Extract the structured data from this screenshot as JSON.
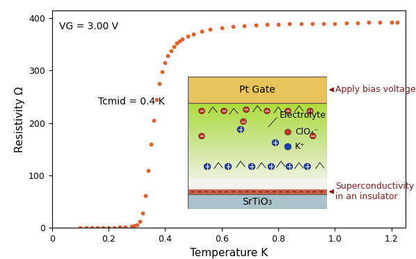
{
  "chart_data": {
    "type": "scatter",
    "x_label": "Temperature K",
    "y_label": "Resistivity Ω",
    "annotations": [
      "VG = 3.00 V",
      "Tcmid = 0.4 K"
    ],
    "x": [
      0.1,
      0.12,
      0.14,
      0.16,
      0.18,
      0.2,
      0.22,
      0.24,
      0.26,
      0.28,
      0.29,
      0.3,
      0.31,
      0.32,
      0.33,
      0.34,
      0.35,
      0.36,
      0.37,
      0.38,
      0.39,
      0.4,
      0.41,
      0.42,
      0.43,
      0.44,
      0.45,
      0.46,
      0.48,
      0.5,
      0.53,
      0.56,
      0.6,
      0.64,
      0.68,
      0.72,
      0.76,
      0.8,
      0.84,
      0.88,
      0.92,
      0.96,
      1.0,
      1.04,
      1.08,
      1.12,
      1.16,
      1.2,
      1.22
    ],
    "values": [
      1,
      1,
      1,
      1,
      1,
      1,
      1,
      2,
      2,
      3,
      4,
      6,
      12,
      28,
      62,
      110,
      160,
      205,
      245,
      275,
      298,
      315,
      328,
      338,
      346,
      352,
      357,
      361,
      366,
      370,
      375,
      379,
      382,
      384,
      386,
      387,
      388,
      388,
      389,
      389,
      390,
      390,
      390,
      391,
      391,
      392,
      392,
      392,
      392
    ],
    "color": "#e2602a",
    "marker": "o",
    "xlim": [
      0,
      1.25
    ],
    "ylim": [
      0,
      415
    ],
    "xticks": [
      0,
      0.2,
      0.4,
      0.6,
      0.8,
      1.0,
      1.2
    ],
    "yticks": [
      0,
      100,
      200,
      300,
      400
    ],
    "grid": false
  },
  "diagram": {
    "gate": "Pt Gate",
    "gate_note": "Apply bias voltage",
    "electrolyte": "Electrolyte",
    "anion": "ClO₄⁻",
    "cation": "K⁺",
    "interface_note": "Superconductivity\nin an insulator",
    "substrate": "SrTiO₃"
  }
}
